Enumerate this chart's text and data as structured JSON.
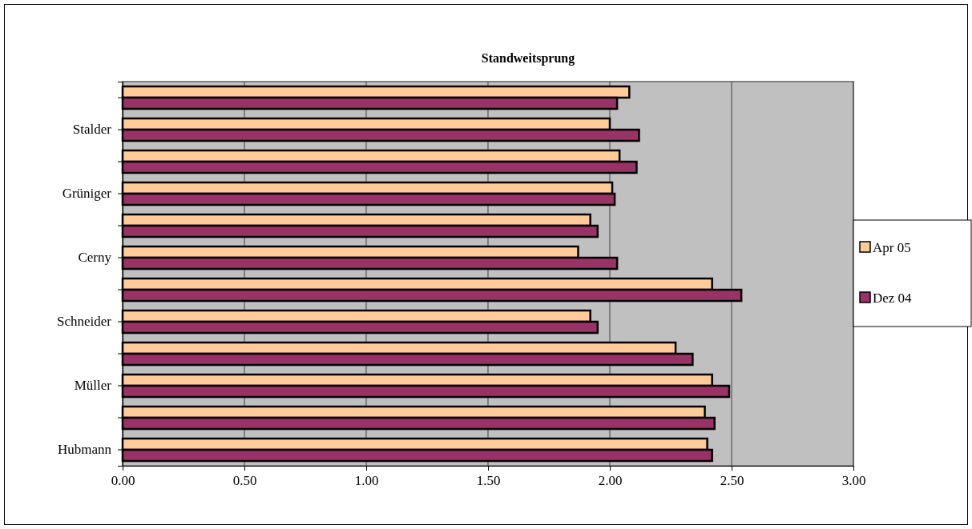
{
  "chart_data": {
    "type": "bar",
    "orientation": "horizontal",
    "title": "Standweitsprung",
    "categories": [
      null,
      "Stalder",
      null,
      "Grüniger",
      null,
      "Cerny",
      null,
      "Schneider",
      null,
      "Müller",
      null,
      "Hubmann"
    ],
    "series": [
      {
        "name": "Apr 05",
        "color": "#ffcc99",
        "values": [
          2.08,
          2.0,
          2.04,
          2.01,
          1.92,
          1.87,
          2.42,
          1.92,
          2.27,
          2.42,
          2.39,
          2.4
        ]
      },
      {
        "name": "Dez 04",
        "color": "#993366",
        "values": [
          2.03,
          2.12,
          2.11,
          2.02,
          1.95,
          2.03,
          2.54,
          1.95,
          2.34,
          2.49,
          2.43,
          2.42
        ]
      }
    ],
    "xlim": [
      0,
      3
    ],
    "xticks": [
      {
        "value": 0,
        "label": "0.00"
      },
      {
        "value": 0.5,
        "label": "0.50"
      },
      {
        "value": 1,
        "label": "1.00"
      },
      {
        "value": 1.5,
        "label": "1.50"
      },
      {
        "value": 2,
        "label": "2.00"
      },
      {
        "value": 2.5,
        "label": "2.50"
      },
      {
        "value": 3,
        "label": "3.00"
      }
    ],
    "grid": "x",
    "legend": "right"
  }
}
